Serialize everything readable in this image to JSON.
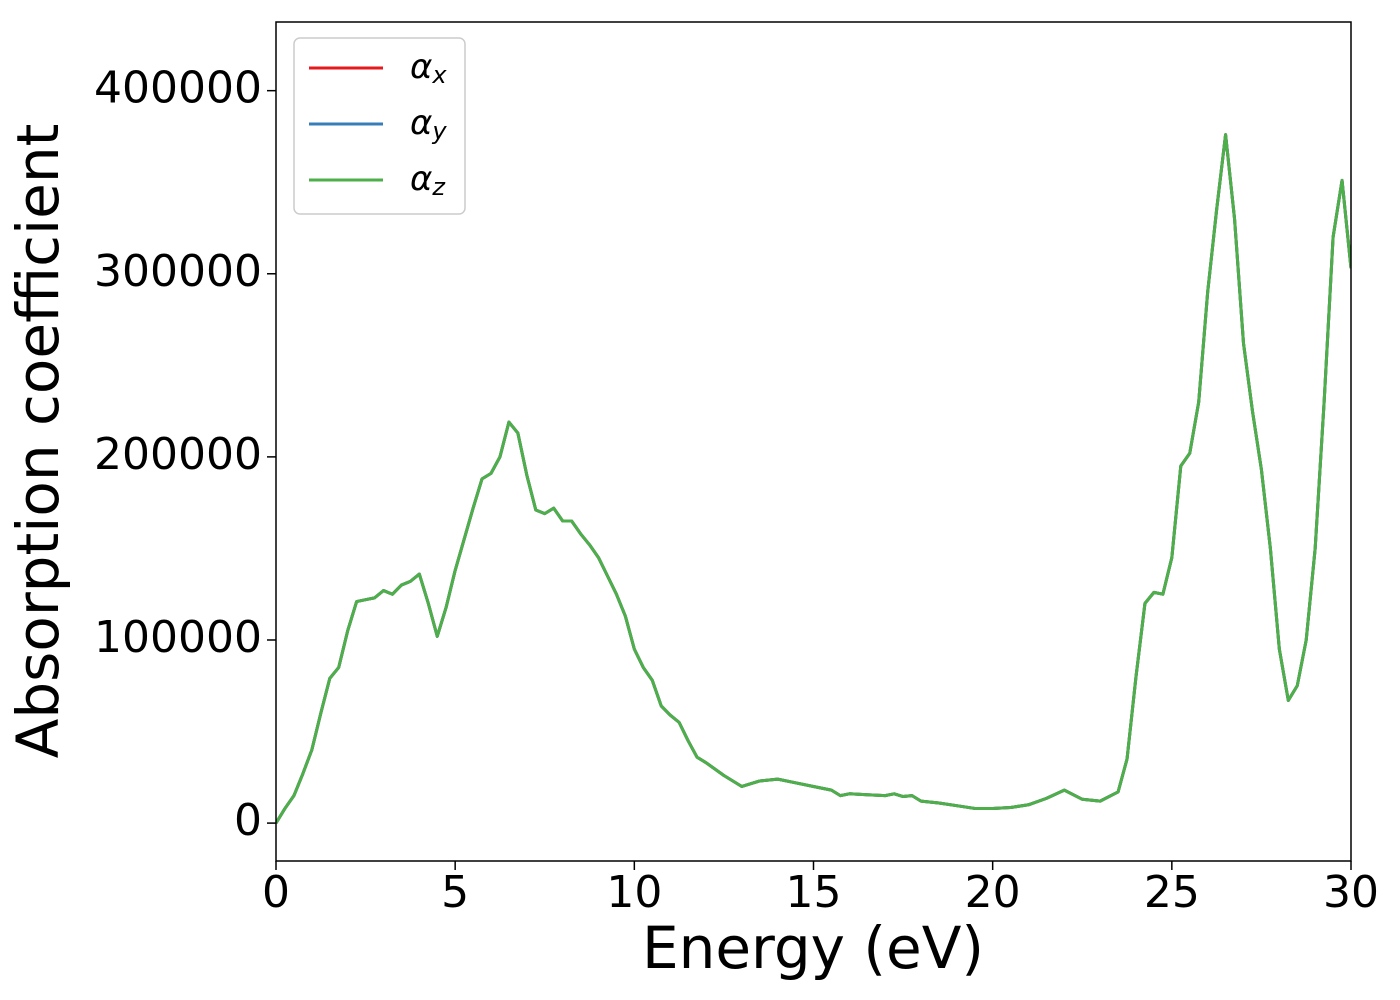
{
  "chart_data": {
    "type": "line",
    "xlabel": "Energy (eV)",
    "ylabel": "Absorption coefficient",
    "x": [
      0,
      0.25,
      0.5,
      0.75,
      1.0,
      1.25,
      1.5,
      1.75,
      2.0,
      2.25,
      2.5,
      2.75,
      3.0,
      3.25,
      3.5,
      3.75,
      4.0,
      4.25,
      4.5,
      4.75,
      5.0,
      5.25,
      5.5,
      5.75,
      6.0,
      6.25,
      6.5,
      6.75,
      7.0,
      7.25,
      7.5,
      7.75,
      8.0,
      8.25,
      8.5,
      8.75,
      9.0,
      9.25,
      9.5,
      9.75,
      10.0,
      10.25,
      10.5,
      10.75,
      11.0,
      11.25,
      11.5,
      11.75,
      12.0,
      12.5,
      13.0,
      13.5,
      14.0,
      14.5,
      15.0,
      15.5,
      15.75,
      16.0,
      16.5,
      17.0,
      17.25,
      17.5,
      17.75,
      18.0,
      18.5,
      19.0,
      19.5,
      20.0,
      20.5,
      21.0,
      21.5,
      22.0,
      22.5,
      23.0,
      23.5,
      23.75,
      24.0,
      24.25,
      24.5,
      24.75,
      25.0,
      25.25,
      25.5,
      25.75,
      26.0,
      26.25,
      26.5,
      26.75,
      27.0,
      27.25,
      27.5,
      27.75,
      28.0,
      28.25,
      28.5,
      28.75,
      29.0,
      29.25,
      29.5,
      29.75,
      30.0
    ],
    "series": [
      {
        "name": "αx",
        "color": "#e41a1c",
        "values": [
          0,
          8000,
          15000,
          27000,
          40000,
          60000,
          79000,
          85000,
          105000,
          121000,
          122000,
          123000,
          127000,
          125000,
          130000,
          132000,
          136000,
          120000,
          102000,
          118000,
          138000,
          155000,
          172000,
          188000,
          191000,
          200000,
          219000,
          213000,
          190000,
          171000,
          169000,
          172000,
          165000,
          165000,
          158000,
          152000,
          145000,
          135000,
          125000,
          113000,
          95000,
          85000,
          78000,
          64000,
          59000,
          55000,
          45000,
          36000,
          33000,
          26000,
          20000,
          23000,
          24000,
          22000,
          20000,
          18000,
          15000,
          16000,
          15500,
          15000,
          16000,
          14500,
          15000,
          12000,
          11000,
          9500,
          8000,
          8000,
          8500,
          10000,
          13500,
          18000,
          13000,
          12000,
          17000,
          35000,
          80000,
          120000,
          126000,
          125000,
          145000,
          195000,
          202000,
          230000,
          290000,
          335000,
          376000,
          330000,
          262000,
          225000,
          193000,
          150000,
          95000,
          67000,
          75000,
          100000,
          150000,
          230000,
          320000,
          351000,
          303000
        ]
      },
      {
        "name": "αy",
        "color": "#377eb8",
        "values": [
          0,
          8000,
          15000,
          27000,
          40000,
          60000,
          79000,
          85000,
          105000,
          121000,
          122000,
          123000,
          127000,
          125000,
          130000,
          132000,
          136000,
          120000,
          102000,
          118000,
          138000,
          155000,
          172000,
          188000,
          191000,
          200000,
          219000,
          213000,
          190000,
          171000,
          169000,
          172000,
          165000,
          165000,
          158000,
          152000,
          145000,
          135000,
          125000,
          113000,
          95000,
          85000,
          78000,
          64000,
          59000,
          55000,
          45000,
          36000,
          33000,
          26000,
          20000,
          23000,
          24000,
          22000,
          20000,
          18000,
          15000,
          16000,
          15500,
          15000,
          16000,
          14500,
          15000,
          12000,
          11000,
          9500,
          8000,
          8000,
          8500,
          10000,
          13500,
          18000,
          13000,
          12000,
          17000,
          35000,
          80000,
          120000,
          126000,
          125000,
          145000,
          195000,
          202000,
          230000,
          290000,
          335000,
          376000,
          330000,
          262000,
          225000,
          193000,
          150000,
          95000,
          67000,
          75000,
          100000,
          150000,
          230000,
          320000,
          351000,
          303000
        ]
      },
      {
        "name": "αz",
        "color": "#4daf4a",
        "values": [
          0,
          8000,
          15000,
          27000,
          40000,
          60000,
          79000,
          85000,
          105000,
          121000,
          122000,
          123000,
          127000,
          125000,
          130000,
          132000,
          136000,
          120000,
          102000,
          118000,
          138000,
          155000,
          172000,
          188000,
          191000,
          200000,
          219000,
          213000,
          190000,
          171000,
          169000,
          172000,
          165000,
          165000,
          158000,
          152000,
          145000,
          135000,
          125000,
          113000,
          95000,
          85000,
          78000,
          64000,
          59000,
          55000,
          45000,
          36000,
          33000,
          26000,
          20000,
          23000,
          24000,
          22000,
          20000,
          18000,
          15000,
          16000,
          15500,
          15000,
          16000,
          14500,
          15000,
          12000,
          11000,
          9500,
          8000,
          8000,
          8500,
          10000,
          13500,
          18000,
          13000,
          12000,
          17000,
          35000,
          80000,
          120000,
          126000,
          125000,
          145000,
          195000,
          202000,
          230000,
          290000,
          335000,
          376000,
          330000,
          262000,
          225000,
          193000,
          150000,
          95000,
          67000,
          75000,
          100000,
          150000,
          230000,
          320000,
          351000,
          303000
        ]
      }
    ],
    "xlim": [
      0,
      30
    ],
    "xticks": [
      0,
      5,
      10,
      15,
      20,
      25,
      30
    ],
    "ylim": [
      -20700,
      437500
    ],
    "yticks": [
      0,
      100000,
      200000,
      300000,
      400000
    ],
    "grid": false,
    "legend": "upper left"
  }
}
